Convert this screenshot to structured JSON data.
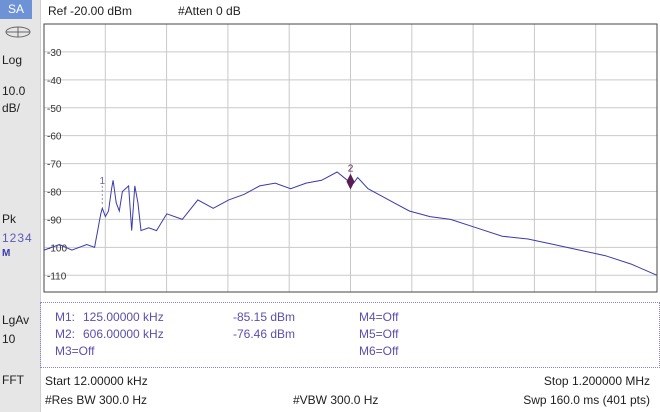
{
  "mode_badge": "SA",
  "header": {
    "ref_level": "Ref -20.00 dBm",
    "atten": "#Atten 0 dB"
  },
  "left_panel": {
    "scale_type": "Log",
    "scale_per_div_value": "10.0",
    "scale_per_div_unit": "dB/",
    "detector": "Pk",
    "traces": "1234",
    "trace_mode": "M",
    "avg_type": "LgAv",
    "avg_count": "10",
    "sweep_mode": "FFT"
  },
  "chart_data": {
    "type": "line",
    "title": "",
    "ylabel": "",
    "xlabel": "",
    "y_tick_labels": [
      "-30",
      "-40",
      "-50",
      "-60",
      "-70",
      "-80",
      "-90",
      "-100",
      "-110"
    ],
    "ylim": [
      -116,
      -20
    ],
    "xlim": [
      12,
      1200
    ],
    "x_unit": "kHz",
    "y_unit": "dBm",
    "grid": true,
    "trace_color": "#3a3ab0",
    "series": [
      {
        "x": [
          12,
          42,
          66,
          95,
          110,
          113,
          116,
          119,
          122,
          125,
          131,
          137,
          143,
          146,
          152,
          158,
          164,
          170,
          176,
          182,
          188,
          194,
          200,
          215,
          230,
          250,
          280,
          310,
          340,
          370,
          400,
          430,
          460,
          490,
          520,
          550,
          580,
          600,
          606,
          612,
          620,
          640,
          660,
          690,
          720,
          760,
          800,
          850,
          900,
          950,
          1000,
          1050,
          1100,
          1150,
          1200
        ],
        "values": [
          -101,
          -99,
          -101,
          -99,
          -100,
          -97,
          -94,
          -91,
          -88,
          -86,
          -89,
          -87,
          -79,
          -76,
          -84,
          -87,
          -80,
          -79,
          -78,
          -94,
          -78,
          -84,
          -94,
          -93,
          -94,
          -88,
          -90,
          -83,
          -86,
          -83,
          -81,
          -78,
          -77,
          -79,
          -77,
          -76,
          -73,
          -76,
          -76.5,
          -77,
          -75,
          -79,
          -81,
          -84,
          -87,
          -89,
          -90,
          -93,
          -96,
          -97,
          -99,
          -101,
          -103,
          -106,
          -110
        ]
      }
    ]
  },
  "markers": {
    "m1": {
      "label": "M1:",
      "freq": "125.00000 kHz",
      "amp": "-85.15 dBm",
      "x": 125,
      "y": -85.15,
      "number": "1"
    },
    "m2": {
      "label": "M2:",
      "freq": "606.00000 kHz",
      "amp": "-76.46 dBm",
      "x": 606,
      "y": -76.46,
      "number": "2"
    },
    "m3": "M3=Off",
    "m4": "M4=Off",
    "m5": "M5=Off",
    "m6": "M6=Off",
    "marker_color": "#5a1f52"
  },
  "footer": {
    "start": "Start 12.00000 kHz",
    "stop": "Stop 1.200000 MHz",
    "rbw": "#Res BW 300.0  Hz",
    "vbw": "#VBW 300.0  Hz",
    "sweep": "Swp 160.0 ms (401 pts)"
  }
}
